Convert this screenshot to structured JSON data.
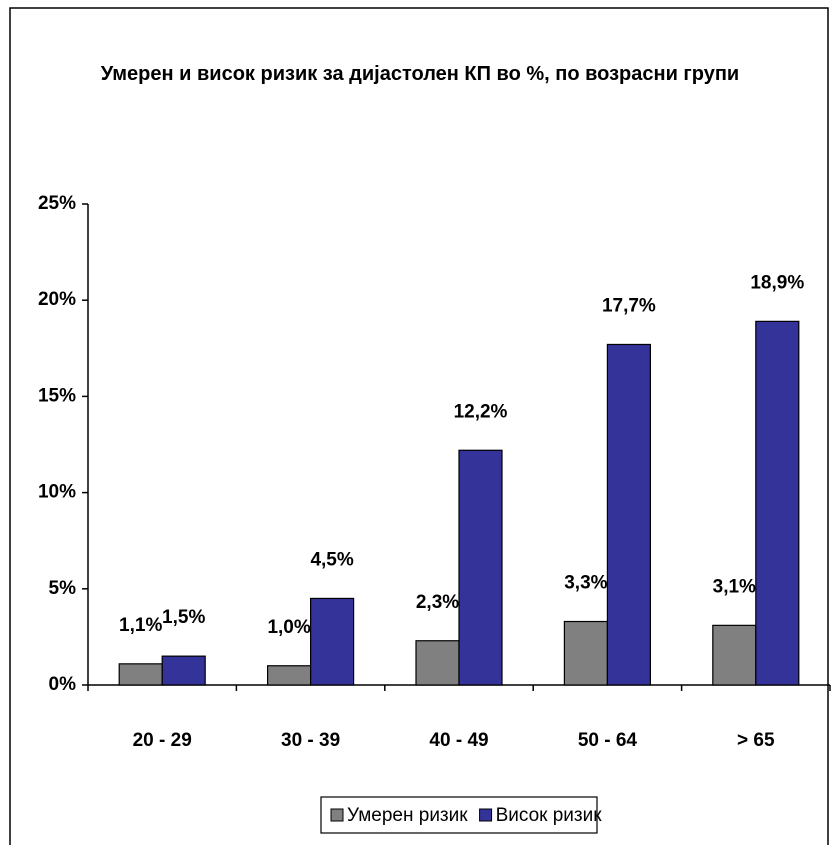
{
  "chart_data": {
    "type": "bar",
    "title": "Умерен и висок ризик за дијастолен КП во %, по возрасни групи",
    "categories": [
      "20 - 29",
      "30 - 39",
      "40 - 49",
      "50 - 64",
      "> 65"
    ],
    "series": [
      {
        "name": "Умерен ризик",
        "color": "#808080",
        "values": [
          1.1,
          1.0,
          2.3,
          3.3,
          3.1
        ],
        "value_labels": [
          "1,1%",
          "1,0%",
          "2,3%",
          "3,3%",
          "3,1%"
        ]
      },
      {
        "name": "Висок ризик",
        "color": "#333399",
        "values": [
          1.5,
          4.5,
          12.2,
          17.7,
          18.9
        ],
        "value_labels": [
          "1,5%",
          "4,5%",
          "12,2%",
          "17,7%",
          "18,9%"
        ]
      }
    ],
    "ylim": [
      0,
      25
    ],
    "yticks": [
      {
        "value": 0,
        "label": "0%"
      },
      {
        "value": 5,
        "label": "5%"
      },
      {
        "value": 10,
        "label": "10%"
      },
      {
        "value": 15,
        "label": "15%"
      },
      {
        "value": 20,
        "label": "20%"
      },
      {
        "value": 25,
        "label": "25%"
      }
    ],
    "grid": false,
    "legend": "bottom"
  }
}
